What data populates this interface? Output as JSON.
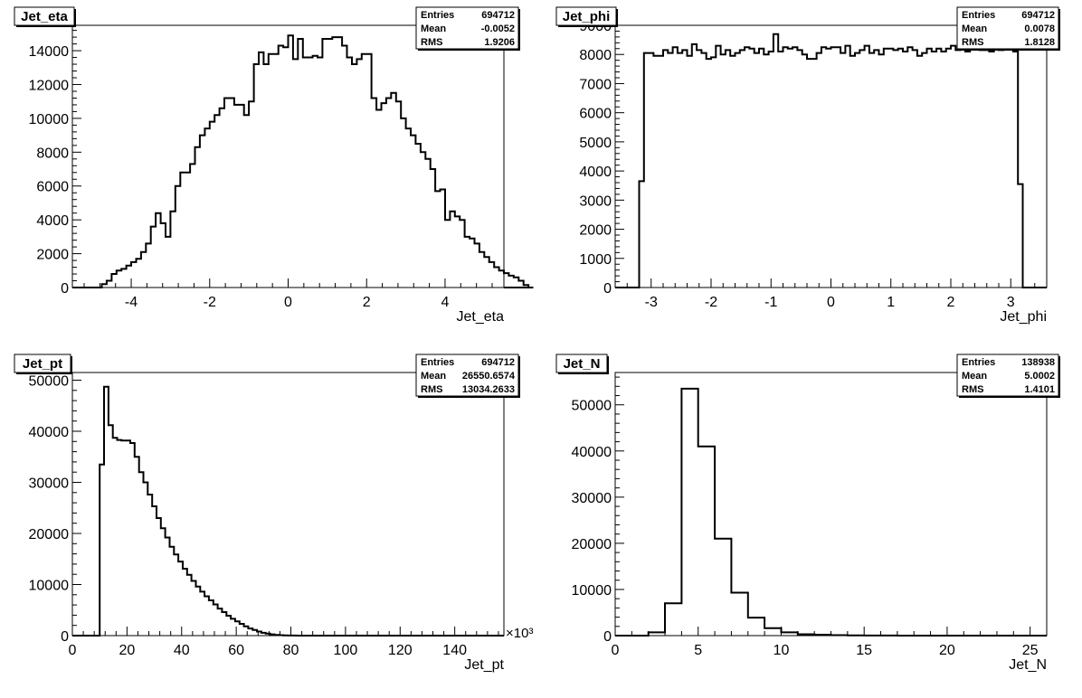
{
  "chart_data": [
    {
      "type": "histogram",
      "title": "Jet_eta",
      "xlabel": "Jet_eta",
      "xlim": [
        -5.5,
        5.5
      ],
      "ylim": [
        0,
        15500
      ],
      "x_ticks": [
        -4,
        -2,
        0,
        2,
        4
      ],
      "y_ticks": [
        0,
        2000,
        4000,
        6000,
        8000,
        10000,
        12000,
        14000
      ],
      "stats": {
        "entries": "694712",
        "mean": "-0.0052",
        "rms": "1.9206"
      },
      "bin_edges_start": -5.0,
      "bin_width": 0.125,
      "values": [
        0,
        0,
        200,
        400,
        800,
        1000,
        1100,
        1300,
        1500,
        1700,
        2100,
        2600,
        3600,
        4400,
        3800,
        3000,
        4500,
        6000,
        6800,
        6800,
        7300,
        8300,
        9000,
        9400,
        9800,
        10200,
        10600,
        11200,
        11200,
        10800,
        10800,
        10200,
        11000,
        13200,
        13900,
        13700,
        13400,
        13800,
        14300,
        14200,
        14900,
        14900,
        14700,
        13600,
        13600,
        13900,
        13600,
        14700,
        14700,
        14800,
        14800,
        14300,
        13200,
        13200,
        13500,
        13800,
        13800,
        13100,
        12000,
        11000,
        10500,
        10300,
        10200,
        9800,
        9400,
        9000,
        8500,
        8000,
        7600,
        7000,
        6400,
        5800,
        5300,
        4800,
        4200,
        3800,
        3200,
        2800,
        2400,
        2100,
        1800,
        1500,
        1200,
        1000,
        850,
        700,
        600,
        400,
        150,
        0
      ],
      "overrides": {
        "35": 13200,
        "36": 13800,
        "41": 13500,
        "43": 13600,
        "45": 13700,
        "52": 13600,
        "53": 13200,
        "57": 11200,
        "58": 10500,
        "59": 10900,
        "60": 11200,
        "61": 11500,
        "62": 11000,
        "63": 10000,
        "70": 5700,
        "71": 5800,
        "72": 4000,
        "73": 4500,
        "74": 4200,
        "75": 4000,
        "76": 3000,
        "77": 2900,
        "78": 2600
      }
    },
    {
      "type": "histogram",
      "title": "Jet_phi",
      "xlabel": "Jet_phi",
      "xlim": [
        -3.6,
        3.6
      ],
      "ylim": [
        0,
        9000
      ],
      "x_ticks": [
        -3,
        -2,
        -1,
        0,
        1,
        2,
        3
      ],
      "y_ticks": [
        0,
        1000,
        2000,
        3000,
        4000,
        5000,
        6000,
        7000,
        8000,
        9000
      ],
      "stats": {
        "entries": "694712",
        "mean": "0.0078",
        "rms": "1.8128"
      },
      "bin_edges_start": -3.2,
      "bin_width": 0.08,
      "values": [
        3650,
        8050,
        8050,
        7950,
        7950,
        8150,
        8050,
        8250,
        8050,
        8150,
        7950,
        8350,
        8150,
        8050,
        7850,
        7900,
        8300,
        8000,
        8150,
        7950,
        8050,
        8150,
        8250,
        8200,
        8050,
        8200,
        8000,
        8100,
        8700,
        8100,
        8250,
        8200,
        8250,
        8150,
        8000,
        7850,
        7850,
        8050,
        8250,
        8200,
        8250,
        8250,
        8050,
        8300,
        7950,
        8050,
        8150,
        8300,
        8050,
        8150,
        8000,
        8200,
        8200,
        8150,
        8200,
        8100,
        8250,
        8150,
        7950,
        8050,
        8200,
        8100,
        8200,
        8100,
        8200,
        8300,
        8150,
        8200,
        8100,
        8250,
        8250,
        8150,
        8150,
        8100,
        8300,
        8150,
        8250,
        8250,
        8100,
        3550
      ]
    },
    {
      "type": "histogram",
      "title": "Jet_pt",
      "xlabel": "Jet_pt",
      "x_multiplier": "×10³",
      "xlim": [
        0,
        158
      ],
      "ylim": [
        0,
        51500
      ],
      "x_ticks": [
        0,
        20,
        40,
        60,
        80,
        100,
        120,
        140
      ],
      "y_ticks": [
        0,
        10000,
        20000,
        30000,
        40000,
        50000
      ],
      "stats": {
        "entries": "694712",
        "mean": "26550.6574",
        "rms": "13034.2633"
      },
      "bin_edges_start": 10,
      "bin_width": 1.6,
      "values": [
        33500,
        48700,
        41200,
        38700,
        38300,
        38200,
        38200,
        37700,
        35000,
        32000,
        30000,
        27600,
        25300,
        23000,
        21000,
        19200,
        17400,
        15900,
        14500,
        13100,
        11900,
        10700,
        9600,
        8600,
        7700,
        6900,
        6100,
        5300,
        4600,
        3900,
        3300,
        2800,
        2300,
        1800,
        1400,
        1100,
        800,
        550,
        400,
        250,
        150,
        80,
        40,
        20,
        10
      ]
    },
    {
      "type": "histogram",
      "title": "Jet_N",
      "xlabel": "Jet_N",
      "xlim": [
        0,
        26
      ],
      "ylim": [
        0,
        57000
      ],
      "x_ticks": [
        0,
        5,
        10,
        15,
        20,
        25
      ],
      "y_ticks": [
        0,
        10000,
        20000,
        30000,
        40000,
        50000
      ],
      "stats": {
        "entries": "138938",
        "mean": "5.0002",
        "rms": "1.4101"
      },
      "bin_edges_start": 2,
      "bin_width": 1,
      "values": [
        700,
        7000,
        53500,
        41000,
        21000,
        9300,
        3900,
        1600,
        700,
        300,
        200,
        100,
        50,
        20,
        10
      ]
    }
  ],
  "labels": {
    "entries": "Entries",
    "mean": "Mean",
    "rms": "RMS"
  }
}
